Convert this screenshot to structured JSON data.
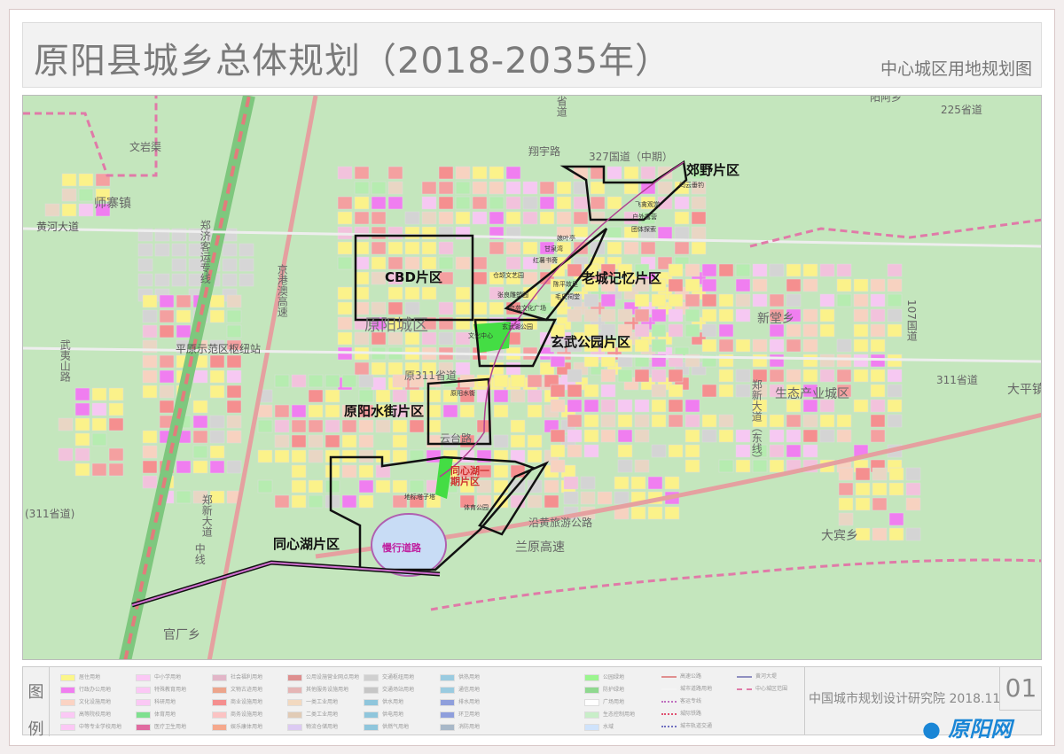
{
  "header": {
    "title": "原阳县城乡总体规划（2018-2035年）",
    "subtitle": "中心城区用地规划图"
  },
  "map": {
    "districts": [
      "CBD片区",
      "原阳城区",
      "老城记忆片区",
      "郊野片区",
      "玄武公园片区",
      "原阳水街片区",
      "同心湖片区",
      "同心湖一期片区",
      "生态产业城区"
    ],
    "places": [
      "师寨镇",
      "新堂乡",
      "大平镇",
      "大宾乡",
      "官厂乡",
      "阳阿乡",
      "平原示范区枢纽站"
    ],
    "roads": [
      "黄河大道",
      "郑济客运专线",
      "京港澳高速",
      "武夷山路",
      "文岩渠",
      "翔宇路",
      "327国道（中期）",
      "107国道",
      "郑新大道（东线）",
      "311省道",
      "原311省道",
      "云台路",
      "沿黄旅游公路",
      "兰原高速",
      "郑新大道",
      "中线",
      "(311省道)",
      "225省道",
      "省道"
    ],
    "pois": [
      "闫云垂钓",
      "飞禽观赏",
      "户外露营",
      "团体探索",
      "娘叶亭",
      "甘泉湾",
      "红薯书斋",
      "仓颉文艺园",
      "陈平故里",
      "张良雕塑园",
      "毛氏祠堂",
      "恋苑文化广场",
      "玄武湖公园",
      "文化中心",
      "原阳水街",
      "地标塔子塔",
      "体育公园",
      "慢行道路"
    ],
    "colors": {
      "background": "#c4e6bd",
      "residential": "#fbf28a",
      "boundary": "#111111",
      "city_limit": "#e07aa8",
      "water": "#c8dcf5"
    }
  },
  "legend": {
    "head": [
      "图",
      "例"
    ],
    "items": [
      {
        "label": "居住用地",
        "color": "#fbf68a"
      },
      {
        "label": "行政办公用地",
        "color": "#f07ef0"
      },
      {
        "label": "文化设施用地",
        "color": "#fbd3c3"
      },
      {
        "label": "高等院校用地",
        "color": "#fbc8f5"
      },
      {
        "label": "中等专业学校用地",
        "color": "#fbc8f5"
      },
      {
        "label": "中小学用地",
        "color": "#fbc8f5"
      },
      {
        "label": "特殊教育用地",
        "color": "#fbc8f5"
      },
      {
        "label": "科研用地",
        "color": "#fbc8f5"
      },
      {
        "label": "体育用地",
        "color": "#7fe08f"
      },
      {
        "label": "医疗卫生用地",
        "color": "#e06ba0"
      },
      {
        "label": "社会福利用地",
        "color": "#e2b6c8"
      },
      {
        "label": "文物古迹用地",
        "color": "#eca58c"
      },
      {
        "label": "商业设施用地",
        "color": "#f58f8f"
      },
      {
        "label": "商务设施用地",
        "color": "#fbc3c3"
      },
      {
        "label": "娱乐康体用地",
        "color": "#f5a88c"
      },
      {
        "label": "公用设施营业网点用地",
        "color": "#de8f8f"
      },
      {
        "label": "其他服务设施用地",
        "color": "#e5b5b5"
      },
      {
        "label": "一类工业用地",
        "color": "#f2d9c0"
      },
      {
        "label": "二类工业用地",
        "color": "#e1cbb6"
      },
      {
        "label": "物流仓储用地",
        "color": "#dccaf2"
      },
      {
        "label": "交通枢纽用地",
        "color": "#d0d0d0"
      },
      {
        "label": "交通场站用地",
        "color": "#c6c6c6"
      },
      {
        "label": "供水用地",
        "color": "#8fc6dc"
      },
      {
        "label": "供电用地",
        "color": "#8fc6dc"
      },
      {
        "label": "供燃气用地",
        "color": "#8fc6dc"
      },
      {
        "label": "供热用地",
        "color": "#9acbe0"
      },
      {
        "label": "通信用地",
        "color": "#9acbe0"
      },
      {
        "label": "排水用地",
        "color": "#8f9fdc"
      },
      {
        "label": "环卫用地",
        "color": "#8f9fdc"
      },
      {
        "label": "消防用地",
        "color": "#a8b8c8"
      },
      {
        "label": "公园绿地",
        "color": "#9bf58f"
      },
      {
        "label": "防护绿地",
        "color": "#8fd88f"
      },
      {
        "label": "广场用地",
        "color": "#ffffff"
      },
      {
        "label": "生态控制用地",
        "color": "#c8eec8"
      },
      {
        "label": "水域",
        "color": "#cfe3fb"
      }
    ],
    "lines": [
      {
        "label": "高速公路",
        "color": "#e08f8f",
        "style": "solid"
      },
      {
        "label": "城市道路用地",
        "color": "#f4f4f4",
        "style": "solid"
      },
      {
        "label": "客运专线",
        "color": "#c070c0",
        "style": "dotted"
      },
      {
        "label": "城际铁路",
        "color": "#e05070",
        "style": "dotted"
      },
      {
        "label": "城市轨道交通",
        "color": "#7070c0",
        "style": "dotted"
      },
      {
        "label": "黄河大堤",
        "color": "#8f8fc0",
        "style": "solid"
      },
      {
        "label": "中心城区范围",
        "color": "#e07aa8",
        "style": "dashed"
      }
    ]
  },
  "footer": {
    "page": "01",
    "org": "中国城市规划设计研究院  2018.11",
    "watermark": "原阳网"
  }
}
